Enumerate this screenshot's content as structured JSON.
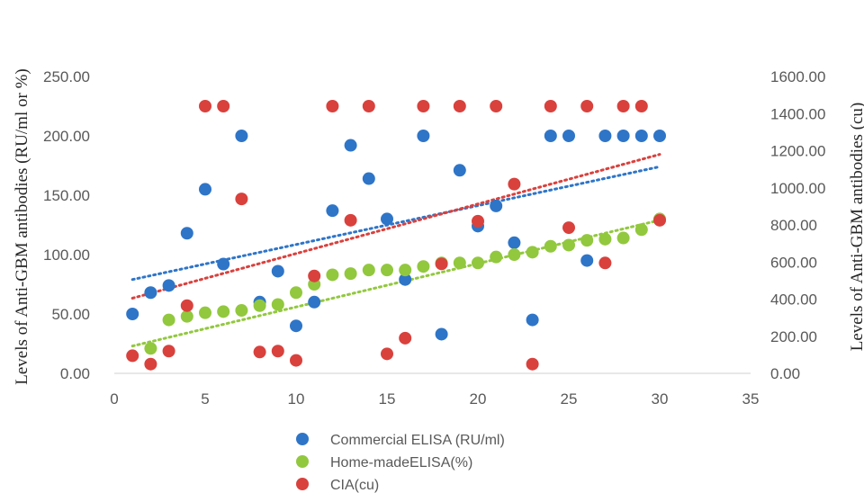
{
  "chart_data": {
    "type": "scatter",
    "title": "",
    "xlabel": "",
    "ylabel_left": "Levels of Anti-GBM antibodies (RU/ml or %)",
    "ylabel_right": "Levels of Anti-GBM antibodies (cu)",
    "xlim": [
      0,
      35
    ],
    "x_ticks": [
      "0",
      "5",
      "10",
      "15",
      "20",
      "25",
      "30",
      "35"
    ],
    "ylim_left": [
      0,
      250
    ],
    "y_ticks_left": [
      "0.00",
      "50.00",
      "100.00",
      "150.00",
      "200.00",
      "250.00"
    ],
    "ylim_right": [
      0,
      1600
    ],
    "y_ticks_right": [
      "0.00",
      "200.00",
      "400.00",
      "600.00",
      "800.00",
      "1000.00",
      "1200.00",
      "1400.00",
      "1600.00"
    ],
    "grid": false,
    "legend_position": "bottom",
    "series": [
      {
        "name": "Commercial ELISA (RU/ml)",
        "axis": "left",
        "color": "#2e75c8",
        "x": [
          1,
          2,
          3,
          4,
          5,
          6,
          7,
          8,
          9,
          10,
          11,
          12,
          13,
          14,
          15,
          16,
          17,
          18,
          19,
          20,
          21,
          22,
          23,
          24,
          25,
          26,
          27,
          28,
          29,
          30
        ],
        "y": [
          50,
          68,
          74,
          118,
          155,
          92,
          200,
          60,
          86,
          40,
          60,
          137,
          192,
          164,
          130,
          79,
          200,
          33,
          171,
          124,
          141,
          110,
          45,
          200,
          200,
          95,
          200,
          200,
          200,
          200
        ],
        "trendline": {
          "x": [
            1,
            30
          ],
          "y": [
            79,
            174
          ]
        }
      },
      {
        "name": "Home-madeELISA(%)",
        "axis": "left",
        "color": "#92c83e",
        "x": [
          2,
          3,
          4,
          5,
          6,
          7,
          8,
          9,
          10,
          11,
          12,
          13,
          14,
          15,
          16,
          17,
          18,
          19,
          20,
          21,
          22,
          23,
          24,
          25,
          26,
          27,
          28,
          29,
          30
        ],
        "y": [
          21,
          45,
          48,
          51,
          52,
          53,
          57,
          58,
          68,
          75,
          83,
          84,
          87,
          87,
          87,
          90,
          93,
          93,
          93,
          98,
          100,
          102,
          107,
          108,
          112,
          113,
          114,
          121,
          130
        ],
        "trendline": {
          "x": [
            1,
            30
          ],
          "y": [
            23,
            129
          ]
        }
      },
      {
        "name": "CIA(cu)",
        "axis": "right",
        "color": "#d9413d",
        "x": [
          1,
          2,
          3,
          4,
          5,
          6,
          7,
          8,
          9,
          10,
          11,
          12,
          13,
          14,
          15,
          16,
          17,
          18,
          19,
          20,
          21,
          22,
          23,
          24,
          25,
          26,
          27,
          28,
          29,
          30
        ],
        "y": [
          95,
          50,
          120,
          365,
          1440,
          1440,
          940,
          115,
          120,
          70,
          525,
          1440,
          825,
          1440,
          105,
          190,
          1440,
          590,
          1440,
          820,
          1440,
          1020,
          50,
          1440,
          785,
          1440,
          595,
          1440,
          1440,
          825
        ],
        "trendline": {
          "x": [
            1,
            30
          ],
          "y": [
            405,
            1180
          ]
        }
      }
    ]
  }
}
